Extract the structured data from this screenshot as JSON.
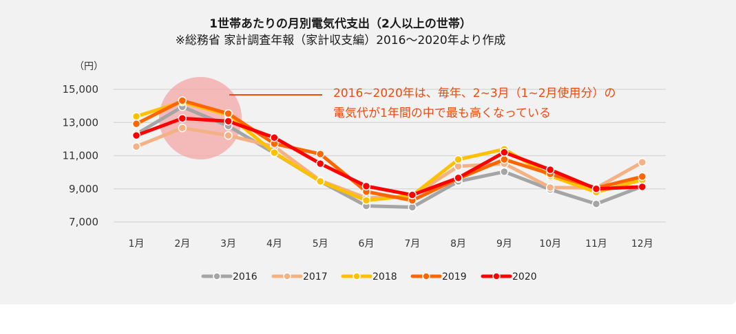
{
  "chart_data": {
    "type": "line",
    "title": "1世帯あたりの月別電気代支出（2人以上の世帯）",
    "subtitle": "※総務省 家計調査年報（家計収支編）2016～2020年より作成",
    "ylabel": "（円）",
    "xlabel": "",
    "ylim": [
      7000,
      15000
    ],
    "yticks": [
      "15,000",
      "13,000",
      "11,000",
      "9,000",
      "7,000"
    ],
    "ytick_values": [
      15000,
      13000,
      11000,
      9000,
      7000
    ],
    "grid": true,
    "legend_position": "bottom",
    "categories": [
      "1月",
      "2月",
      "3月",
      "4月",
      "5月",
      "6月",
      "7月",
      "8月",
      "9月",
      "10月",
      "11月",
      "12月"
    ],
    "series": [
      {
        "name": "2016",
        "color": "#a5a5a5",
        "values": [
          12300,
          13950,
          12790,
          11150,
          9450,
          7970,
          7890,
          9450,
          10030,
          8960,
          8090,
          9150
        ]
      },
      {
        "name": "2017",
        "color": "#f4b183",
        "values": [
          11550,
          12670,
          12220,
          11550,
          9500,
          8450,
          8550,
          10360,
          10520,
          9080,
          9050,
          10600
        ]
      },
      {
        "name": "2018",
        "color": "#ffc000",
        "values": [
          13370,
          14240,
          13450,
          11180,
          9450,
          8300,
          8600,
          10770,
          11390,
          9780,
          8800,
          9540
        ]
      },
      {
        "name": "2019",
        "color": "#ff6600",
        "values": [
          12920,
          14320,
          13540,
          11720,
          11100,
          8830,
          8300,
          9620,
          10770,
          9900,
          9050,
          9740
        ]
      },
      {
        "name": "2020",
        "color": "#ff0000",
        "values": [
          12220,
          13250,
          13080,
          12090,
          10520,
          9160,
          8630,
          9660,
          11200,
          10150,
          9000,
          9120
        ]
      }
    ],
    "annotation": {
      "lines": [
        "2016~2020年は、毎年、2~3月（1~2月使用分）の",
        "電気代が1年間の中で最も高くなっている"
      ],
      "color": "#f04a10",
      "highlight_color": "#f4a6a6",
      "highlight_months": [
        "2月",
        "3月"
      ]
    }
  }
}
